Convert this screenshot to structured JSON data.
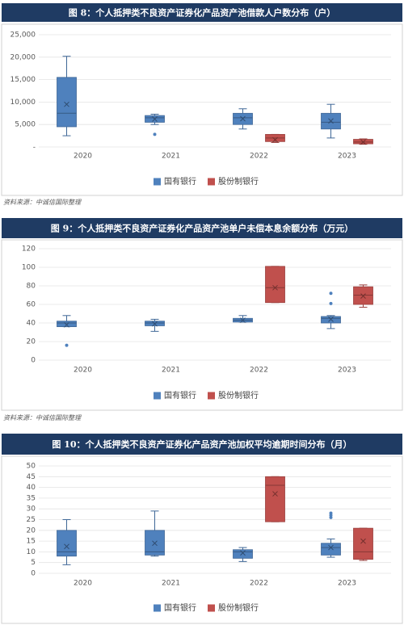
{
  "chart_data": [
    {
      "type": "box",
      "title": "图 8：个人抵押类不良资产证券化产品资产池借款人户数分布（户）",
      "categories": [
        "2020",
        "2021",
        "2022",
        "2023"
      ],
      "ylim": [
        0,
        25000
      ],
      "yticks": [
        {
          "value": 0,
          "label": "-"
        },
        {
          "value": 5000,
          "label": "5,000"
        },
        {
          "value": 10000,
          "label": "10,000"
        },
        {
          "value": 15000,
          "label": "15,000"
        },
        {
          "value": 20000,
          "label": "20,000"
        },
        {
          "value": 25000,
          "label": "25,000"
        }
      ],
      "grid": true,
      "series": [
        {
          "name": "国有银行",
          "color": "#4f81bd",
          "boxes": [
            {
              "min": 2500,
              "q1": 4500,
              "median": 7500,
              "q3": 15500,
              "max": 20200,
              "mean": 9500,
              "outliers": []
            },
            {
              "min": 5000,
              "q1": 5500,
              "median": 6500,
              "q3": 7000,
              "max": 7300,
              "mean": 6200,
              "outliers": [
                2800
              ]
            },
            {
              "min": 4000,
              "q1": 5000,
              "median": 6500,
              "q3": 7500,
              "max": 8500,
              "mean": 6300,
              "outliers": []
            },
            {
              "min": 2000,
              "q1": 4000,
              "median": 5500,
              "q3": 7500,
              "max": 9500,
              "mean": 5800,
              "outliers": []
            }
          ]
        },
        {
          "name": "股份制银行",
          "color": "#c0504d",
          "boxes": [
            null,
            null,
            {
              "min": 1000,
              "q1": 1200,
              "median": 2000,
              "q3": 2800,
              "max": 2800,
              "mean": 1600,
              "outliers": []
            },
            {
              "min": 600,
              "q1": 700,
              "median": 1100,
              "q3": 1700,
              "max": 1800,
              "mean": 1100,
              "outliers": []
            }
          ]
        }
      ],
      "source": "资料来源：中诚信国际整理"
    },
    {
      "type": "box",
      "title": "图 9：个人抵押类不良资产证券化产品资产池单户未偿本息余额分布（万元）",
      "categories": [
        "2020",
        "2021",
        "2022",
        "2023"
      ],
      "ylim": [
        0,
        120
      ],
      "yticks": [
        0,
        20,
        40,
        60,
        80,
        100,
        120
      ],
      "grid": true,
      "series": [
        {
          "name": "国有银行",
          "color": "#4f81bd",
          "boxes": [
            {
              "min": 36,
              "q1": 36,
              "median": 40,
              "q3": 42,
              "max": 48,
              "mean": 38,
              "outliers": [
                16
              ]
            },
            {
              "min": 31,
              "q1": 37,
              "median": 40,
              "q3": 42,
              "max": 44,
              "mean": 39,
              "outliers": []
            },
            {
              "min": 41,
              "q1": 41,
              "median": 43,
              "q3": 45,
              "max": 48,
              "mean": 43,
              "outliers": []
            },
            {
              "min": 34,
              "q1": 40,
              "median": 45,
              "q3": 47,
              "max": 48,
              "mean": 44,
              "outliers": [
                61,
                72
              ]
            }
          ]
        },
        {
          "name": "股份制银行",
          "color": "#c0504d",
          "boxes": [
            null,
            null,
            {
              "min": 62,
              "q1": 62,
              "median": 78,
              "q3": 101,
              "max": 101,
              "mean": 78,
              "outliers": []
            },
            {
              "min": 57,
              "q1": 60,
              "median": 70,
              "q3": 79,
              "max": 81,
              "mean": 69,
              "outliers": []
            }
          ]
        }
      ],
      "source": "资料来源：中诚信国际整理"
    },
    {
      "type": "box",
      "title": "图 10：个人抵押类不良资产证券化产品资产池加权平均逾期时间分布（月）",
      "categories": [
        "2020",
        "2021",
        "2022",
        "2023"
      ],
      "ylim": [
        0,
        50
      ],
      "yticks": [
        0,
        5,
        10,
        15,
        20,
        25,
        30,
        35,
        40,
        45,
        50
      ],
      "grid": true,
      "series": [
        {
          "name": "国有银行",
          "color": "#4f81bd",
          "boxes": [
            {
              "min": 4,
              "q1": 8,
              "median": 10,
              "q3": 20,
              "max": 25,
              "mean": 12.5,
              "outliers": []
            },
            {
              "min": 8,
              "q1": 8.5,
              "median": 10,
              "q3": 20,
              "max": 29,
              "mean": 14,
              "outliers": []
            },
            {
              "min": 5.5,
              "q1": 7,
              "median": 10,
              "q3": 11,
              "max": 12,
              "mean": 9.5,
              "outliers": []
            },
            {
              "min": 7.5,
              "q1": 8.5,
              "median": 12,
              "q3": 14,
              "max": 16,
              "mean": 12,
              "outliers": [
                26,
                27,
                28
              ]
            }
          ]
        },
        {
          "name": "股份制银行",
          "color": "#c0504d",
          "boxes": [
            null,
            null,
            {
              "min": 24,
              "q1": 24,
              "median": 41,
              "q3": 45,
              "max": 45,
              "mean": 37,
              "outliers": []
            },
            {
              "min": 6,
              "q1": 6.5,
              "median": 10,
              "q3": 21,
              "max": 21,
              "mean": 15,
              "outliers": []
            }
          ]
        }
      ]
    }
  ]
}
